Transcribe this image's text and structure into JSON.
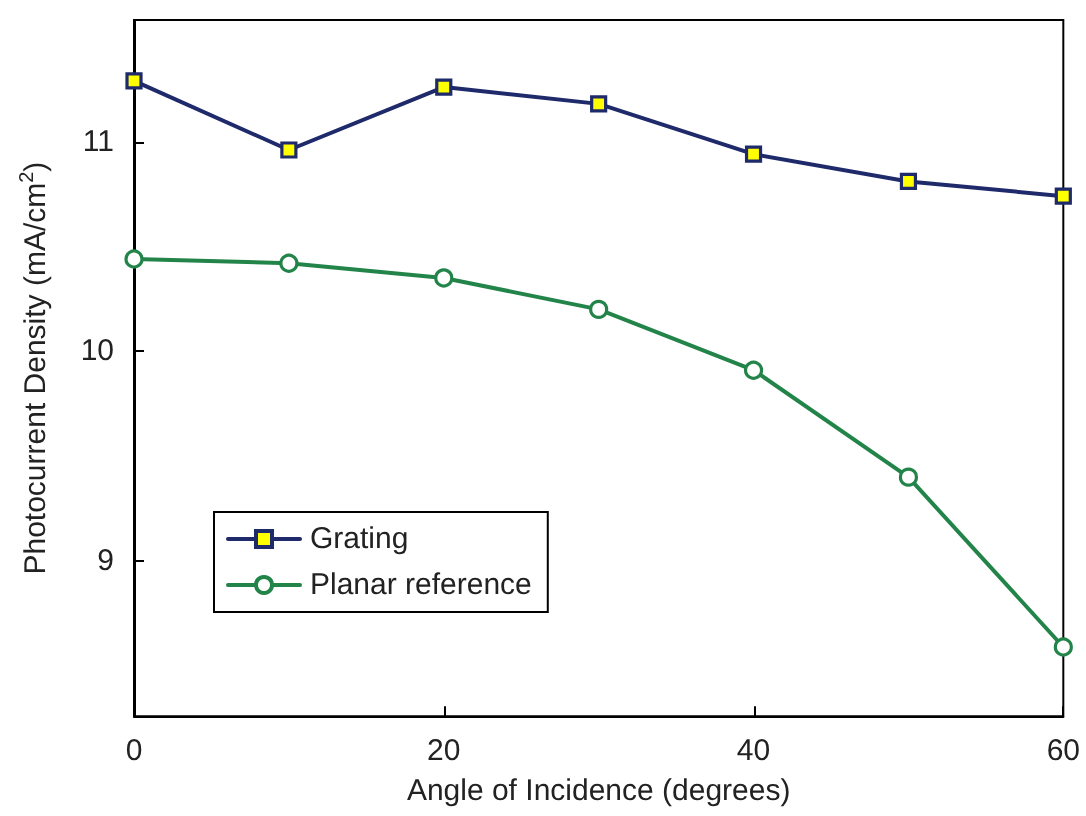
{
  "chart_data": {
    "type": "line",
    "xlabel": "Angle of Incidence (degrees)",
    "ylabel": "Photocurrent Density (mA/cm$^{2}$)",
    "x": [
      0,
      10,
      20,
      30,
      40,
      50,
      60
    ],
    "series": [
      {
        "name": "Grating",
        "color": "#1f2a6b",
        "marker": "square",
        "values": [
          11.29,
          10.96,
          11.26,
          11.18,
          10.94,
          10.81,
          10.74
        ]
      },
      {
        "name": "Planar reference",
        "color": "#23844a",
        "marker": "circle",
        "values": [
          10.44,
          10.42,
          10.35,
          10.2,
          9.91,
          9.4,
          8.59
        ]
      }
    ],
    "xlim": [
      0,
      60
    ],
    "xticks": [
      0,
      20,
      40,
      60
    ],
    "ylim": [
      8.26,
      11.58
    ],
    "yticks": [
      9,
      10,
      11
    ],
    "grid": false,
    "legend": "bottom left",
    "line_style": "solid"
  }
}
